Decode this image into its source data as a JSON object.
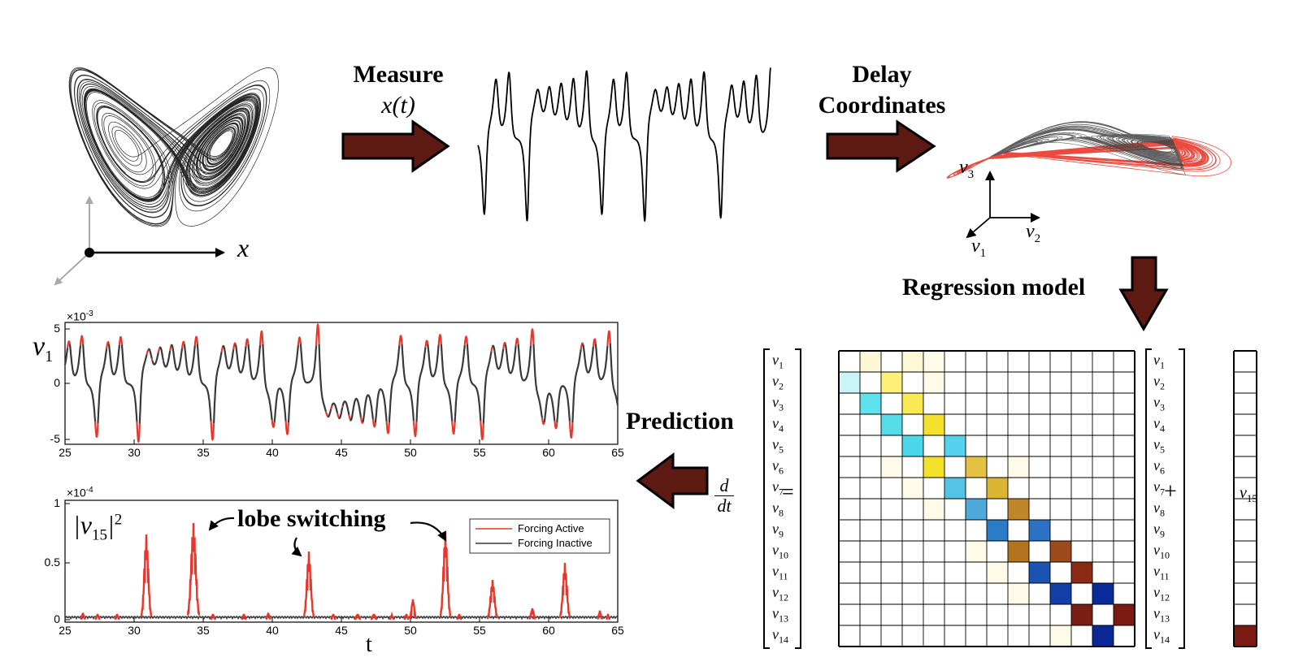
{
  "steps": {
    "measure": "Measure",
    "measure_signal": "x(t)",
    "delay_line1": "Delay",
    "delay_line2": "Coordinates",
    "regression": "Regression model",
    "prediction": "Prediction"
  },
  "axes3d": {
    "x_label": "x",
    "v1": "v",
    "v2": "v",
    "v3": "v",
    "v1_sub": "1",
    "v2_sub": "2",
    "v3_sub": "3"
  },
  "plot_top": {
    "ylabel": "v",
    "ylabel_sub": "1",
    "exponent_base": "×10",
    "exponent": "-3",
    "yticks": [
      "5",
      "0",
      "-5"
    ],
    "xticks": [
      "25",
      "30",
      "35",
      "40",
      "45",
      "50",
      "55",
      "60",
      "65"
    ]
  },
  "plot_bottom": {
    "ylabel": "|v",
    "ylabel_sub": "15",
    "ylabel_tail": "|",
    "ylabel_sup": "2",
    "exponent_base": "×10",
    "exponent": "-4",
    "yticks": [
      "1",
      "0.5",
      "0"
    ],
    "xticks": [
      "25",
      "30",
      "35",
      "40",
      "45",
      "50",
      "55",
      "60",
      "65"
    ],
    "xlabel": "t",
    "annotation": "lobe switching",
    "legend": [
      "Forcing Active",
      "Forcing Inactive"
    ]
  },
  "matrix": {
    "derivative_num": "d",
    "derivative_den": "dt",
    "equals": "=",
    "plus": "+",
    "forcing_label": "v",
    "forcing_sub": "15",
    "var_symbol": "v",
    "row_subs": [
      "1",
      "2",
      "3",
      "4",
      "5",
      "6",
      "7",
      "8",
      "9",
      "10",
      "11",
      "12",
      "13",
      "14"
    ]
  },
  "colors": {
    "arrow": "#5c1a13",
    "active": "#e8362a",
    "inactive": "#3a3a3a"
  }
}
